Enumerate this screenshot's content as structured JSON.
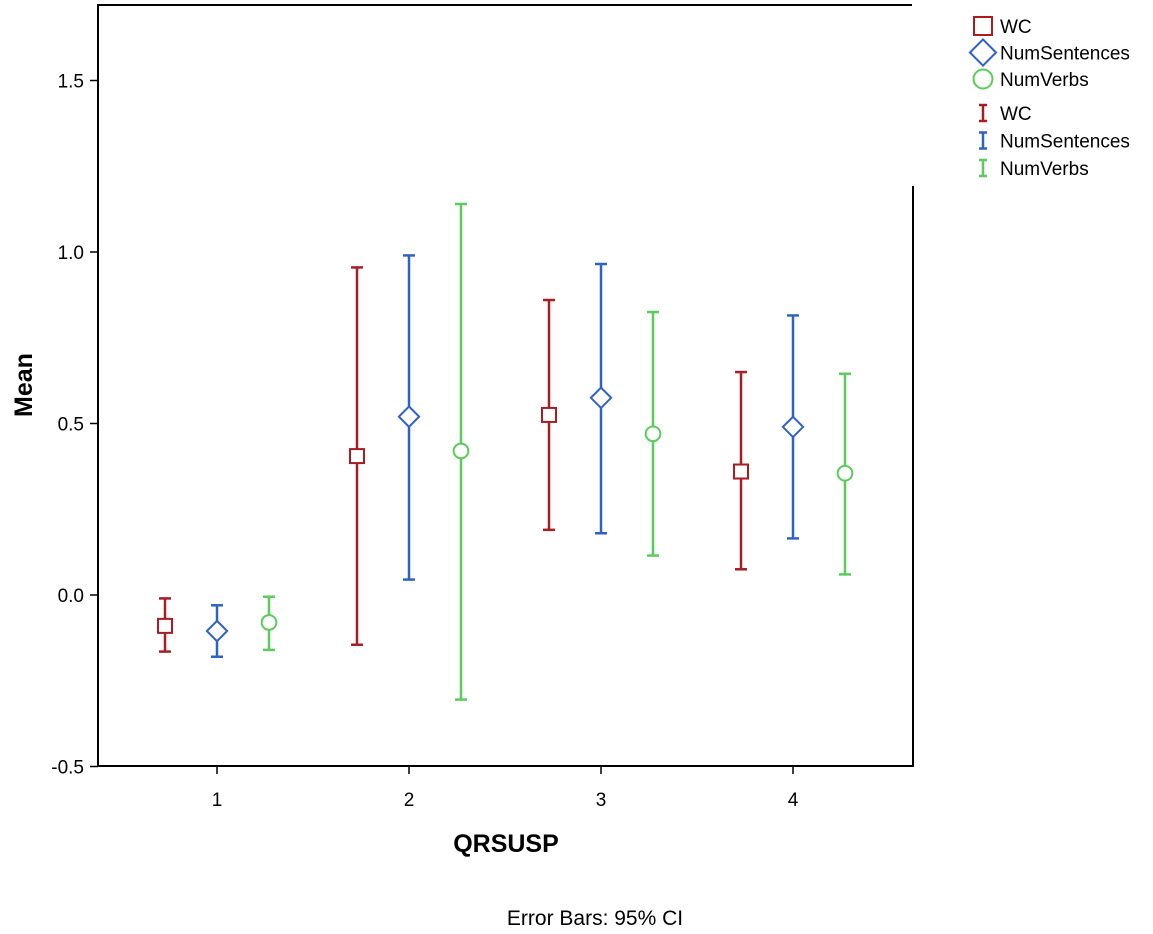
{
  "chart_data": {
    "type": "scatter",
    "subtype": "error-bar",
    "xlabel": "QRSUSP",
    "ylabel": "Mean",
    "categories": [
      "1",
      "2",
      "3",
      "4"
    ],
    "ylim": [
      -0.5,
      1.72
    ],
    "yticks": [
      -0.5,
      0.0,
      0.5,
      1.0,
      1.5
    ],
    "ytick_labels": [
      "-0.5",
      "0.0",
      "0.5",
      "1.0",
      "1.5"
    ],
    "grid": false,
    "legend_position": "top-right, outside plot",
    "footnote": "Error Bars: 95% CI",
    "series": [
      {
        "name": "WC",
        "marker": "square",
        "color": "#a81c22",
        "means": [
          -0.09,
          0.405,
          0.525,
          0.36
        ],
        "ci_low": [
          -0.165,
          -0.145,
          0.19,
          0.075
        ],
        "ci_high": [
          -0.01,
          0.955,
          0.86,
          0.65
        ]
      },
      {
        "name": "NumSentences",
        "marker": "diamond",
        "color": "#2e62c9",
        "means": [
          -0.105,
          0.52,
          0.575,
          0.49
        ],
        "ci_low": [
          -0.18,
          0.045,
          0.18,
          0.165
        ],
        "ci_high": [
          -0.03,
          0.99,
          0.965,
          0.815
        ]
      },
      {
        "name": "NumVerbs",
        "marker": "circle",
        "color": "#5bcc5b",
        "means": [
          -0.08,
          0.42,
          0.47,
          0.355
        ],
        "ci_low": [
          -0.16,
          -0.305,
          0.115,
          0.06
        ],
        "ci_high": [
          -0.005,
          1.14,
          0.825,
          0.645
        ]
      }
    ],
    "legend": {
      "marker_items": [
        "WC",
        "NumSentences",
        "NumVerbs"
      ],
      "errorbar_items": [
        "WC",
        "NumSentences",
        "NumVerbs"
      ]
    }
  }
}
